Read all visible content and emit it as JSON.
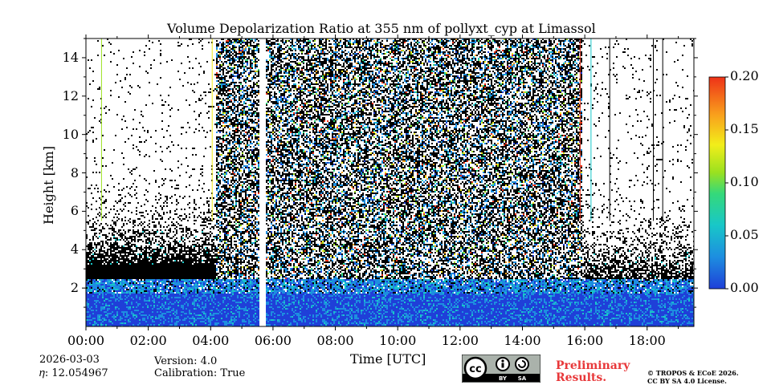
{
  "chart_data": {
    "type": "heatmap",
    "title": "Volume Depolarization Ratio at 355 nm of pollyxt_cyp at Limassol",
    "xlabel": "Time [UTC]",
    "ylabel": "Height [km]",
    "xlim": [
      0,
      19.5
    ],
    "ylim": [
      0,
      15
    ],
    "x_ticks": [
      {
        "value": 0,
        "label": "00:00"
      },
      {
        "value": 2,
        "label": "02:00"
      },
      {
        "value": 4,
        "label": "04:00"
      },
      {
        "value": 6,
        "label": "06:00"
      },
      {
        "value": 8,
        "label": "08:00"
      },
      {
        "value": 10,
        "label": "10:00"
      },
      {
        "value": 12,
        "label": "12:00"
      },
      {
        "value": 14,
        "label": "14:00"
      },
      {
        "value": 16,
        "label": "16:00"
      },
      {
        "value": 18,
        "label": "18:00"
      }
    ],
    "y_ticks": [
      {
        "value": 2,
        "label": "2"
      },
      {
        "value": 4,
        "label": "4"
      },
      {
        "value": 6,
        "label": "6"
      },
      {
        "value": 8,
        "label": "8"
      },
      {
        "value": 10,
        "label": "10"
      },
      {
        "value": 12,
        "label": "12"
      },
      {
        "value": 14,
        "label": "14"
      }
    ],
    "colorbar": {
      "min": 0.0,
      "max": 0.2,
      "ticks": [
        {
          "value": 0.0,
          "label": "0.00"
        },
        {
          "value": 0.05,
          "label": "0.05"
        },
        {
          "value": 0.1,
          "label": "0.10"
        },
        {
          "value": 0.15,
          "label": "0.15"
        },
        {
          "value": 0.2,
          "label": "0.20"
        }
      ]
    },
    "data_gap": {
      "start": 5.55,
      "end": 5.72
    },
    "noisy_period": {
      "start": 4.15,
      "end": 15.9
    },
    "boundary_layer_top_km": 2.5,
    "noise_onset_km": {
      "night_early": 4.0,
      "night_late": 3.0
    }
  },
  "meta": {
    "date": "2026-03-03",
    "eta": "𝜂: 12.054967",
    "version": "Version: 4.0",
    "calibration": "Calibration: True",
    "preliminary_line1": "Preliminary",
    "preliminary_line2": "Results.",
    "copyright_line1": "© TROPOS & ECoE 2026.",
    "copyright_line2": "CC BY SA 4.0 License."
  },
  "license_badge": {
    "text_cc": "cc",
    "text_by": "BY",
    "text_sa": "SA"
  },
  "colors": {
    "colormap": [
      "#1f3fd8",
      "#1d8ee0",
      "#18c7c8",
      "#35d97a",
      "#9be11f",
      "#f2ee1a",
      "#f9a11c",
      "#ee3218"
    ],
    "prelim": "#e8383a"
  }
}
